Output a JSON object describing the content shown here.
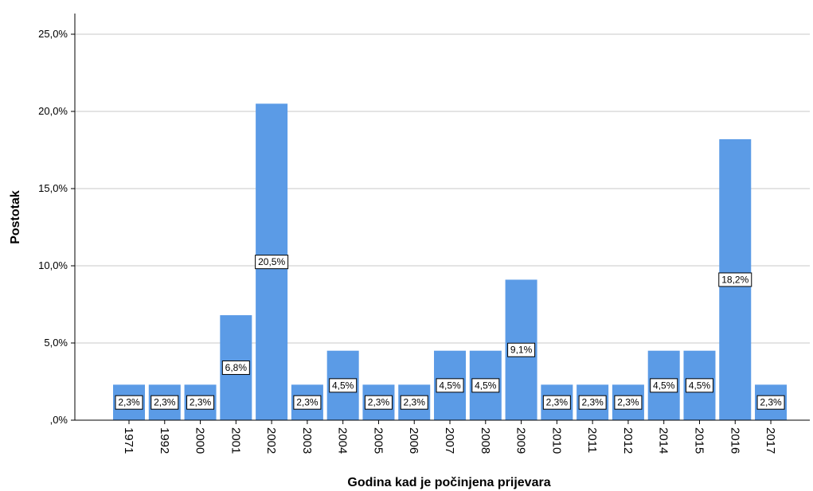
{
  "chart_data": {
    "type": "bar",
    "title": "",
    "xlabel": "Godina kad je počinjena prijevara",
    "ylabel": "Postotak",
    "ylim": [
      0,
      25
    ],
    "yticks": [
      0,
      5,
      10,
      15,
      20,
      25
    ],
    "ytick_labels": [
      ",0%",
      "5,0%",
      "10,0%",
      "15,0%",
      "20,0%",
      "25,0%"
    ],
    "grid": true,
    "bar_color": "#5b9be6",
    "categories": [
      "1971",
      "1992",
      "2000",
      "2001",
      "2002",
      "2003",
      "2004",
      "2005",
      "2006",
      "2007",
      "2008",
      "2009",
      "2010",
      "2011",
      "2012",
      "2014",
      "2015",
      "2016",
      "2017"
    ],
    "values": [
      2.3,
      2.3,
      2.3,
      6.8,
      20.5,
      2.3,
      4.5,
      2.3,
      2.3,
      4.5,
      4.5,
      9.1,
      2.3,
      2.3,
      2.3,
      4.5,
      4.5,
      18.2,
      2.3
    ],
    "value_labels": [
      "2,3%",
      "2,3%",
      "2,3%",
      "6,8%",
      "20,5%",
      "2,3%",
      "4,5%",
      "2,3%",
      "2,3%",
      "4,5%",
      "4,5%",
      "9,1%",
      "2,3%",
      "2,3%",
      "2,3%",
      "4,5%",
      "4,5%",
      "18,2%",
      "2,3%"
    ]
  }
}
